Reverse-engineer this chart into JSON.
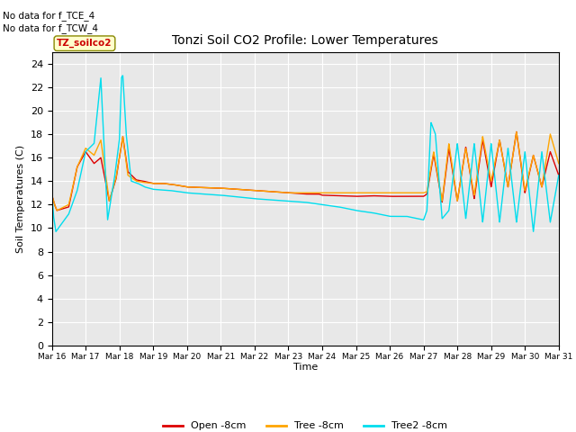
{
  "title": "Tonzi Soil CO2 Profile: Lower Temperatures",
  "ylabel": "Soil Temperatures (C)",
  "xlabel": "Time",
  "annotations": [
    "No data for f_TCE_4",
    "No data for f_TCW_4"
  ],
  "legend_label": "TZ_soilco2",
  "ylim": [
    0,
    25
  ],
  "yticks": [
    0,
    2,
    4,
    6,
    8,
    10,
    12,
    14,
    16,
    18,
    20,
    22,
    24
  ],
  "xtick_labels": [
    "Mar 16",
    "Mar 17",
    "Mar 18",
    "Mar 19",
    "Mar 20",
    "Mar 21",
    "Mar 22",
    "Mar 23",
    "Mar 24",
    "Mar 25",
    "Mar 26",
    "Mar 27",
    "Mar 28",
    "Mar 29",
    "Mar 30",
    "Mar 31"
  ],
  "line_colors": {
    "open": "#dd0000",
    "tree": "#ffa500",
    "tree2": "#00ddee"
  },
  "line_labels": [
    "Open -8cm",
    "Tree -8cm",
    "Tree2 -8cm"
  ],
  "bg_color": "#e8e8e8",
  "open_xp": [
    0,
    0.08,
    0.15,
    0.5,
    0.75,
    1.0,
    1.25,
    1.45,
    1.7,
    1.9,
    2.1,
    2.25,
    2.5,
    2.7,
    3.0,
    3.3,
    3.6,
    4.0,
    5.0,
    6.0,
    7.0,
    7.5,
    7.9,
    8.0,
    8.5,
    9.0,
    9.5,
    10.0,
    10.5,
    11.0,
    11.1,
    11.3,
    11.55,
    11.75,
    12.0,
    12.25,
    12.5,
    12.75,
    13.0,
    13.25,
    13.5,
    13.75,
    14.0,
    14.25,
    14.5,
    14.75,
    15.0
  ],
  "open_yp": [
    12.8,
    12.0,
    11.5,
    11.8,
    15.2,
    16.5,
    15.5,
    16.0,
    12.3,
    14.2,
    17.8,
    14.8,
    14.1,
    14.0,
    13.8,
    13.8,
    13.7,
    13.5,
    13.4,
    13.2,
    13.0,
    12.9,
    12.9,
    12.8,
    12.75,
    12.7,
    12.75,
    12.7,
    12.7,
    12.7,
    12.9,
    16.3,
    12.2,
    16.8,
    12.3,
    16.9,
    12.5,
    17.5,
    13.5,
    17.5,
    13.5,
    18.2,
    13.0,
    16.2,
    13.5,
    16.5,
    14.5
  ],
  "tree_xp": [
    0,
    0.08,
    0.15,
    0.5,
    0.75,
    1.0,
    1.25,
    1.45,
    1.7,
    1.9,
    2.1,
    2.25,
    2.5,
    2.7,
    3.0,
    3.3,
    3.6,
    4.0,
    5.0,
    6.0,
    7.0,
    7.5,
    7.9,
    8.0,
    8.5,
    9.0,
    9.5,
    10.0,
    10.5,
    11.0,
    11.1,
    11.3,
    11.55,
    11.75,
    12.0,
    12.25,
    12.5,
    12.75,
    13.0,
    13.25,
    13.5,
    13.75,
    14.0,
    14.25,
    14.5,
    14.75,
    15.0
  ],
  "tree_yp": [
    12.8,
    12.0,
    11.5,
    12.0,
    15.2,
    16.8,
    16.2,
    17.5,
    12.3,
    14.3,
    17.8,
    14.5,
    14.0,
    13.9,
    13.8,
    13.8,
    13.7,
    13.5,
    13.4,
    13.2,
    13.0,
    13.0,
    13.0,
    13.0,
    13.0,
    13.0,
    13.0,
    13.0,
    13.0,
    13.0,
    13.1,
    16.5,
    12.3,
    17.2,
    12.3,
    16.8,
    12.8,
    17.8,
    14.0,
    17.5,
    13.5,
    18.2,
    13.2,
    16.2,
    13.5,
    18.0,
    15.5
  ],
  "tree2_xp": [
    0,
    0.05,
    0.12,
    0.5,
    0.75,
    1.0,
    1.25,
    1.45,
    1.65,
    1.85,
    2.0,
    2.06,
    2.1,
    2.2,
    2.35,
    2.55,
    2.75,
    3.0,
    3.5,
    4.0,
    5.0,
    6.0,
    7.0,
    7.5,
    8.0,
    8.5,
    9.0,
    9.5,
    10.0,
    10.5,
    11.0,
    11.1,
    11.22,
    11.35,
    11.55,
    11.75,
    12.0,
    12.25,
    12.5,
    12.75,
    13.0,
    13.25,
    13.5,
    13.75,
    14.0,
    14.25,
    14.5,
    14.75,
    15.0
  ],
  "tree2_yp": [
    13.0,
    11.0,
    9.7,
    11.2,
    13.2,
    16.5,
    17.2,
    22.8,
    10.7,
    14.2,
    17.5,
    22.8,
    23.0,
    18.0,
    14.0,
    13.8,
    13.5,
    13.3,
    13.2,
    13.0,
    12.8,
    12.5,
    12.3,
    12.2,
    12.0,
    11.8,
    11.5,
    11.3,
    11.0,
    11.0,
    10.7,
    11.5,
    19.0,
    18.0,
    10.8,
    11.5,
    17.2,
    10.8,
    17.2,
    10.5,
    17.2,
    10.5,
    16.8,
    10.5,
    16.5,
    9.7,
    16.5,
    10.5,
    14.5
  ]
}
